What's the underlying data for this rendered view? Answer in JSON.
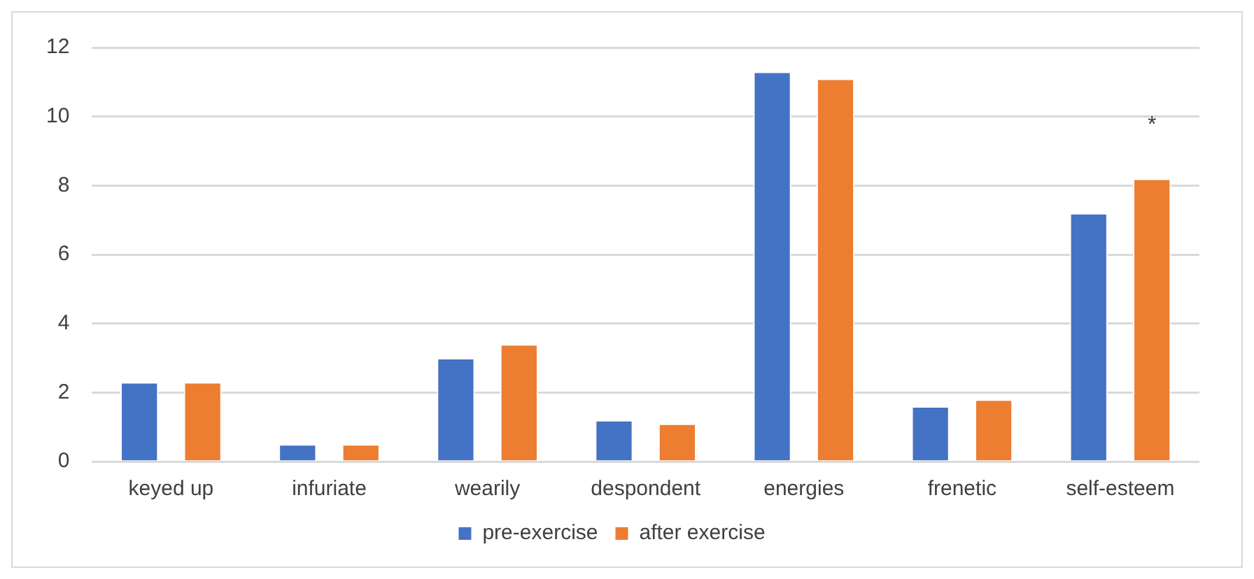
{
  "chart_data": {
    "type": "bar",
    "categories": [
      "keyed up",
      "infuriate",
      "wearily",
      "despondent",
      "energies",
      "frenetic",
      "self-esteem"
    ],
    "series": [
      {
        "name": "pre-exercise",
        "color": "#4472c4",
        "values": [
          2.3,
          0.5,
          3.0,
          1.2,
          11.3,
          1.6,
          7.2
        ]
      },
      {
        "name": "after exercise",
        "color": "#ed7d31",
        "values": [
          2.3,
          0.5,
          3.4,
          1.1,
          11.1,
          1.8,
          8.2
        ]
      }
    ],
    "ylim": [
      0,
      12
    ],
    "yticks": [
      0,
      2,
      4,
      6,
      8,
      10,
      12
    ],
    "grid": "y",
    "legend": "bottom",
    "annotations": [
      "*"
    ]
  }
}
